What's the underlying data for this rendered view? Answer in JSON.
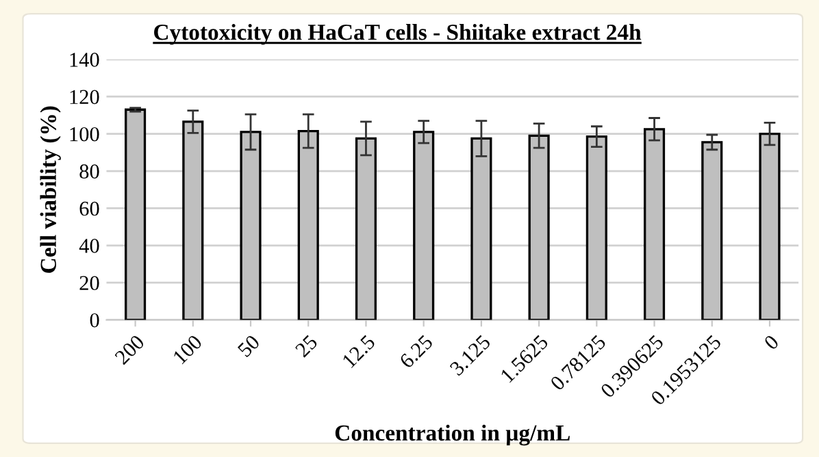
{
  "chart_data": {
    "type": "bar",
    "title": "Cytotoxicity on HaCaT cells - Shiitake extract 24h",
    "xlabel": "Concentration in µg/mL",
    "ylabel": "Cell viability (%)",
    "categories": [
      "200",
      "100",
      "50",
      "25",
      "12.5",
      "6.25",
      "3.125",
      "1.5625",
      "0.78125",
      "0.390625",
      "0.1953125",
      "0"
    ],
    "values": [
      113,
      106.5,
      101,
      101.5,
      97.5,
      101,
      97.5,
      99,
      98.5,
      102.5,
      95.5,
      100
    ],
    "errors": [
      1,
      6,
      9.5,
      9,
      9,
      6,
      9.5,
      6.5,
      5.5,
      6,
      4,
      6
    ],
    "color": "#bfbfbf",
    "ylim": [
      0,
      140
    ],
    "yticks": [
      0,
      20,
      40,
      60,
      80,
      100,
      120,
      140
    ],
    "grid": "y"
  }
}
